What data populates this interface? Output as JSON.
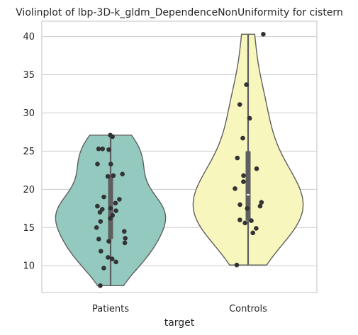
{
  "chart_data": {
    "type": "violin",
    "title": "Violinplot of lbp-3D-k_gldm_DependenceNonUniformity for cistern",
    "xlabel": "target",
    "ylabel": "",
    "ylim": [
      6.5,
      42
    ],
    "yticks": [
      10,
      15,
      20,
      25,
      30,
      35,
      40
    ],
    "grid": "horizontal",
    "categories": [
      "Patients",
      "Controls"
    ],
    "series": [
      {
        "category": "Patients",
        "color": "#93c9bf",
        "min": 7.4,
        "q1": 13.5,
        "median": 17.3,
        "q3": 21.9,
        "max": 27.1,
        "points": [
          27.1,
          26.9,
          25.3,
          25.3,
          25.2,
          23.3,
          23.3,
          22.0,
          21.8,
          21.7,
          19.0,
          18.7,
          18.2,
          17.8,
          17.5,
          17.4,
          17.2,
          17.0,
          16.6,
          16.2,
          15.8,
          15.0,
          14.5,
          13.6,
          13.5,
          13.2,
          13.0,
          11.9,
          11.1,
          10.9,
          10.5,
          9.7,
          7.4
        ]
      },
      {
        "category": "Controls",
        "color": "#f7f6bd",
        "min": 10.1,
        "q1": 15.9,
        "median": 19.3,
        "q3": 25.0,
        "max": 40.3,
        "points": [
          40.3,
          33.7,
          31.1,
          29.3,
          26.7,
          24.1,
          22.7,
          21.8,
          21.0,
          20.1,
          18.3,
          18.0,
          17.8,
          17.5,
          16.0,
          15.9,
          15.6,
          14.9,
          14.3,
          10.1
        ]
      }
    ]
  }
}
